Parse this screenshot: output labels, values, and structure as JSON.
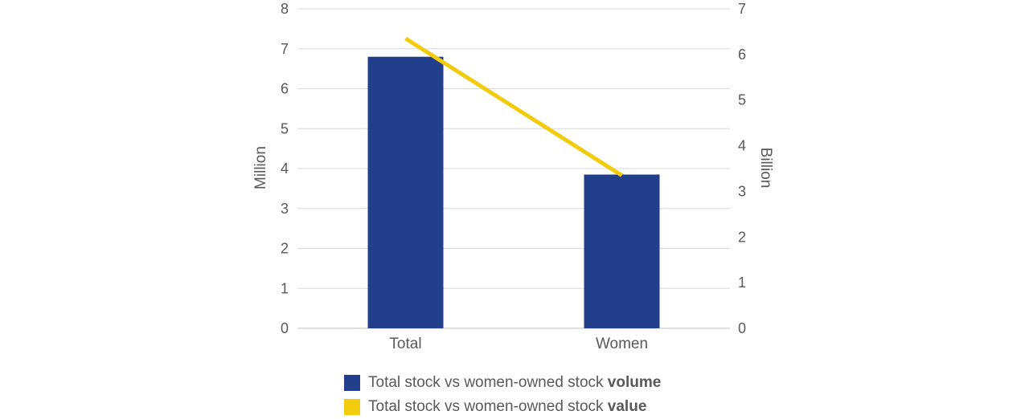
{
  "chart_data": {
    "type": "bar",
    "categories": [
      "Total",
      "Women"
    ],
    "left_axis": {
      "label": "Million",
      "ylim": [
        0,
        8
      ],
      "ticks": [
        "0",
        "1",
        "2",
        "3",
        "4",
        "5",
        "6",
        "7",
        "8"
      ]
    },
    "right_axis": {
      "label": "Billion",
      "ylim": [
        0,
        7
      ],
      "ticks": [
        "0",
        "1",
        "2",
        "3",
        "4",
        "5",
        "6",
        "7"
      ]
    },
    "series": [
      {
        "name": "Total stock vs women-owned stock volume",
        "name_prefix": "Total stock vs women-owned stock",
        "name_emphasis": "volume",
        "type": "bar",
        "axis": "left",
        "color": "#233f8c",
        "values": [
          6.8,
          3.85
        ]
      },
      {
        "name": "Total stock vs women-owned stock value",
        "name_prefix": "Total stock vs women-owned stock",
        "name_emphasis": "value",
        "type": "line",
        "axis": "right",
        "color": "#f2cc0c",
        "values": [
          6.35,
          3.35
        ]
      }
    ],
    "grid": true,
    "legend_position": "bottom"
  }
}
